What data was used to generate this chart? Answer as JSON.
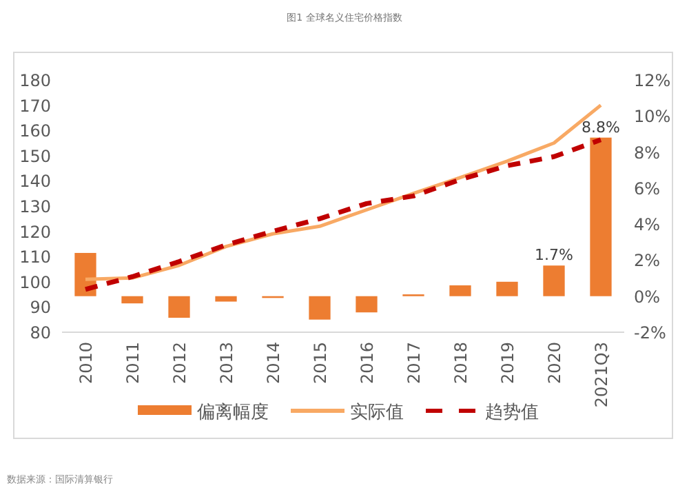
{
  "chart_data": {
    "type": "bar",
    "title": "图1 全球名义住宅价格指数",
    "categories": [
      "2010",
      "2011",
      "2012",
      "2013",
      "2014",
      "2015",
      "2016",
      "2017",
      "2018",
      "2019",
      "2020",
      "2021Q3"
    ],
    "series": [
      {
        "name": "偏离幅度",
        "axis": "y2",
        "color": "#ed7d31",
        "values": [
          2.4,
          -0.4,
          -1.2,
          -0.3,
          -0.1,
          -1.3,
          -0.9,
          0.1,
          0.6,
          0.8,
          1.7,
          8.8
        ],
        "value_labels": [
          null,
          null,
          null,
          null,
          null,
          null,
          null,
          null,
          null,
          null,
          "1.7%",
          "8.8%"
        ]
      },
      {
        "name": "实际值",
        "type": "line",
        "axis": "y",
        "color": "#f8a964",
        "line_style": "solid",
        "values": [
          101,
          101.5,
          106.5,
          114,
          119,
          122,
          128.5,
          135,
          141.3,
          147.8,
          155,
          170
        ]
      },
      {
        "name": "趋势值",
        "type": "line",
        "axis": "y",
        "color": "#c00000",
        "line_style": "dashed",
        "values": [
          97,
          102,
          108,
          114.6,
          120,
          125,
          131,
          134,
          140.5,
          146,
          149.6,
          156.3
        ]
      }
    ],
    "ylim": [
      80,
      180
    ],
    "yticks": [
      80,
      90,
      100,
      110,
      120,
      130,
      140,
      150,
      160,
      170,
      180
    ],
    "y2lim": [
      -2,
      12
    ],
    "y2ticks": [
      {
        "value": -2,
        "label": "-2%"
      },
      {
        "value": 0,
        "label": "0%"
      },
      {
        "value": 2,
        "label": "2%"
      },
      {
        "value": 4,
        "label": "4%"
      },
      {
        "value": 6,
        "label": "6%"
      },
      {
        "value": 8,
        "label": "8%"
      },
      {
        "value": 10,
        "label": "10%"
      },
      {
        "value": 12,
        "label": "12%"
      }
    ],
    "legend": "bottom",
    "grid": false,
    "annotations": [
      "数据来源：国际清算银行"
    ]
  }
}
